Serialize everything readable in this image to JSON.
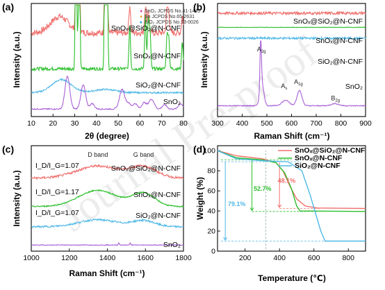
{
  "figure": {
    "watermark": "Journal Pre-proof"
  },
  "chart_data": [
    {
      "panel": "(a)",
      "type": "line",
      "xlabel": "2θ (degree)",
      "ylabel": "Intensity (a.u.)",
      "xlim": [
        10,
        80
      ],
      "xticks": [
        10,
        20,
        30,
        40,
        50,
        60,
        70,
        80
      ],
      "y_ticks_shown": false,
      "legend_position": "top-right",
      "legend": [
        {
          "marker": "♦",
          "text": "SnO₂ JCPDS No.41-1445",
          "color": "#cc3b9c"
        },
        {
          "marker": "♦",
          "text": "Sn  JCPDS No.65-2631",
          "color": "#e0a020"
        },
        {
          "marker": "●",
          "text": "SiO₂ JCPDS No.13-0026",
          "color": "#2aa7c9"
        }
      ],
      "series": [
        {
          "name": "SnOₓ@SiO₂@N-CNF",
          "color": "#ef6f6c",
          "baseline": 0.75,
          "noise": 0.06,
          "peaks": [
            [
              23,
              0.15,
              4
            ],
            [
              30.6,
              1.4,
              0.3
            ],
            [
              32.0,
              1.3,
              0.3
            ],
            [
              43.9,
              0.8,
              0.3
            ],
            [
              44.9,
              0.7,
              0.3
            ],
            [
              55.3,
              0.25,
              0.4
            ],
            [
              62.5,
              0.25,
              0.4
            ],
            [
              63.8,
              0.22,
              0.4
            ],
            [
              72.4,
              0.2,
              0.4
            ],
            [
              73.2,
              0.18,
              0.4
            ],
            [
              79.5,
              0.15,
              0.4
            ]
          ]
        },
        {
          "name": "SnOₓ@N-CNF",
          "color": "#2bbf2b",
          "baseline": 0.42,
          "noise": 0.03,
          "peaks": [
            [
              30.6,
              3.2,
              0.28
            ],
            [
              32.0,
              2.8,
              0.28
            ],
            [
              43.9,
              1.6,
              0.28
            ],
            [
              44.9,
              1.3,
              0.28
            ],
            [
              55.3,
              0.4,
              0.35
            ],
            [
              62.5,
              0.5,
              0.35
            ],
            [
              63.8,
              0.45,
              0.35
            ],
            [
              64.6,
              0.35,
              0.35
            ],
            [
              72.4,
              0.3,
              0.35
            ],
            [
              73.2,
              0.3,
              0.35
            ],
            [
              79.5,
              0.25,
              0.35
            ]
          ]
        },
        {
          "name": "SiO₂@N-CNF",
          "color": "#4fb8e6",
          "baseline": 0.2,
          "noise": 0.015,
          "peaks": [
            [
              24,
              0.12,
              4.5
            ],
            [
              44,
              0.03,
              5
            ]
          ]
        },
        {
          "name": "SnO₂",
          "color": "#a85fd6",
          "baseline": 0.05,
          "noise": 0.01,
          "peaks": [
            [
              26.6,
              0.3,
              1.1
            ],
            [
              33.9,
              0.22,
              1.1
            ],
            [
              38.0,
              0.05,
              1
            ],
            [
              51.8,
              0.18,
              1.2
            ],
            [
              54.8,
              0.05,
              1
            ],
            [
              57.8,
              0.05,
              1
            ],
            [
              61.9,
              0.06,
              1
            ],
            [
              64.7,
              0.06,
              1
            ],
            [
              66.0,
              0.05,
              1
            ],
            [
              71.3,
              0.04,
              1
            ],
            [
              78.7,
              0.05,
              1
            ]
          ]
        }
      ],
      "series_labels": [
        "SnOₓ@SiO₂@N-CNF",
        "SnOₓ@N-CNF",
        "SiO₂@N-CNF",
        "SnO₂"
      ]
    },
    {
      "panel": "(b)",
      "type": "line",
      "xlabel": "Raman Shift (cm⁻¹)",
      "ylabel": "Intensity (a.u.)",
      "xlim": [
        300,
        900
      ],
      "xticks": [
        300,
        400,
        500,
        600,
        700,
        800,
        900
      ],
      "y_ticks_shown": false,
      "series": [
        {
          "name": "SnOₓ@SiO₂@N-CNF",
          "color": "#ef6f6c",
          "baseline": 0.93,
          "noise": 0.025
        },
        {
          "name": "SnOₓ@N-CNF",
          "color": "#2bbf2b",
          "baseline": 0.8,
          "noise": 0.004
        },
        {
          "name": "SiO₂@N-CNF",
          "color": "#4fb8e6",
          "baseline": 0.7,
          "noise": 0.02
        },
        {
          "name": "SnO₂",
          "color": "#a85fd6",
          "baseline": 0.08,
          "noise": 0.008,
          "peaks": [
            [
              475,
              0.45,
              3
            ],
            [
              480,
              0.2,
              8
            ],
            [
              576,
              0.05,
              15
            ],
            [
              632,
              0.14,
              10
            ],
            [
              776,
              0.02,
              15
            ]
          ]
        }
      ],
      "annotations": [
        {
          "text": "A",
          "sub": "2g",
          "x": 478,
          "y": 0.6
        },
        {
          "text": "A",
          "sub": "s",
          "x": 570,
          "y": 0.26
        },
        {
          "text": "A",
          "sub": "1g",
          "x": 628,
          "y": 0.3
        },
        {
          "text": "B",
          "sub": "2g",
          "x": 778,
          "y": 0.15
        }
      ]
    },
    {
      "panel": "(c)",
      "type": "line",
      "xlabel": "Raman Shift (cm⁻¹)",
      "ylabel": "Intensity (a.u.)",
      "xlim": [
        1000,
        1800
      ],
      "xticks": [
        1000,
        1200,
        1400,
        1600,
        1800
      ],
      "y_ticks_shown": false,
      "series": [
        {
          "name": "SnOₓ@SiO₂@N-CNF",
          "color": "#ef6f6c",
          "baseline": 0.7,
          "noise": 0.022,
          "ratio": "I_D/I_G=1.07",
          "peaks": [
            [
              1350,
              0.12,
              110
            ],
            [
              1590,
              0.11,
              70
            ]
          ]
        },
        {
          "name": "SnOₓ@N-CNF",
          "color": "#2bbf2b",
          "baseline": 0.42,
          "noise": 0.012,
          "ratio": "I_D/I_G=1.17",
          "peaks": [
            [
              1350,
              0.16,
              100
            ],
            [
              1590,
              0.13,
              60
            ]
          ]
        },
        {
          "name": "SiO₂@N-CNF",
          "color": "#4fb8e6",
          "baseline": 0.22,
          "noise": 0.018,
          "ratio": "I_D/I_G=1.07",
          "peaks": [
            [
              1350,
              0.07,
              100
            ],
            [
              1590,
              0.06,
              60
            ]
          ]
        },
        {
          "name": "SnO₂",
          "color": "#a85fd6",
          "baseline": 0.04,
          "noise": 0.006,
          "peaks": [
            [
              1460,
              0.02,
              3
            ],
            [
              1520,
              0.02,
              3
            ]
          ]
        }
      ],
      "annotations": [
        {
          "text": "D band",
          "x": 1350,
          "y": 0.93
        },
        {
          "text": "G band",
          "x": 1590,
          "y": 0.93
        }
      ]
    },
    {
      "panel": "(d)",
      "type": "line",
      "xlabel": "Temperature (℃)",
      "ylabel": "Weight (%)",
      "xlim": [
        40,
        900
      ],
      "ylim": [
        0,
        105
      ],
      "xticks": [
        200,
        400,
        600,
        800
      ],
      "yticks": [
        0,
        20,
        40,
        60,
        80,
        100
      ],
      "legend_position": "top-right",
      "series": [
        {
          "name": "SnOₓ@SiO₂@N-CNF",
          "color": "#ef6f6c",
          "points": [
            [
              40,
              100
            ],
            [
              150,
              95
            ],
            [
              300,
              92
            ],
            [
              380,
              88
            ],
            [
              420,
              80
            ],
            [
              460,
              65
            ],
            [
              500,
              52
            ],
            [
              550,
              45
            ],
            [
              620,
              43
            ],
            [
              900,
              42.5
            ]
          ]
        },
        {
          "name": "SnOₓ@N-CNF",
          "color": "#2bbf2b",
          "points": [
            [
              40,
              100
            ],
            [
              150,
              93
            ],
            [
              300,
              91
            ],
            [
              380,
              88
            ],
            [
              430,
              78
            ],
            [
              470,
              62
            ],
            [
              500,
              45
            ],
            [
              520,
              40
            ],
            [
              900,
              39.5
            ]
          ]
        },
        {
          "name": "SiO₂@N-CNF",
          "color": "#4fb8e6",
          "points": [
            [
              40,
              100
            ],
            [
              150,
              92
            ],
            [
              300,
              90
            ],
            [
              450,
              89
            ],
            [
              530,
              80
            ],
            [
              580,
              55
            ],
            [
              640,
              20
            ],
            [
              665,
              10
            ],
            [
              900,
              10
            ]
          ]
        }
      ],
      "annotations": [
        {
          "text": "52.7%",
          "color": "#2bbf2b",
          "x": 250,
          "y": 60
        },
        {
          "text": "48.1%",
          "color": "#ef6f6c",
          "x": 390,
          "y": 68
        },
        {
          "text": "79.1%",
          "color": "#4fb8e6",
          "x": 100,
          "y": 45
        }
      ]
    }
  ]
}
